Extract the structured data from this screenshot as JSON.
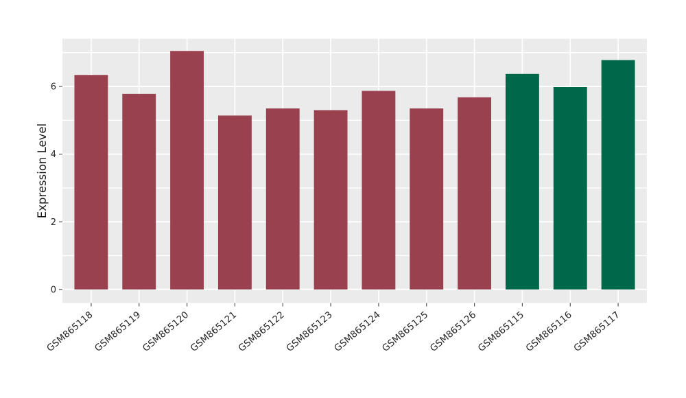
{
  "figure": {
    "background": "#ffffff",
    "panel_background": "#EBEBEB",
    "grid_color": "#ffffff",
    "tick_color": "#555555",
    "text_color": "#262626",
    "axis_title_color": "#1a1a1a"
  },
  "chart_data": {
    "type": "bar",
    "title": "",
    "xlabel": "",
    "ylabel": "Expression Level",
    "orientation": "vertical",
    "legend": "none",
    "grid": true,
    "categories": [
      "GSM865118",
      "GSM865119",
      "GSM865120",
      "GSM865121",
      "GSM865122",
      "GSM865123",
      "GSM865124",
      "GSM865125",
      "GSM865126",
      "GSM865115",
      "GSM865116",
      "GSM865117"
    ],
    "values": [
      6.34,
      5.78,
      7.05,
      5.14,
      5.35,
      5.3,
      5.87,
      5.35,
      5.68,
      6.37,
      5.98,
      6.78
    ],
    "bar_colors": [
      "#9A4150",
      "#9A4150",
      "#9A4150",
      "#9A4150",
      "#9A4150",
      "#9A4150",
      "#9A4150",
      "#9A4150",
      "#9A4150",
      "#00684A",
      "#00684A",
      "#00684A"
    ],
    "group_colors": {
      "maroon": "#9A4150",
      "green": "#00684A"
    },
    "y_ticks": [
      0,
      2,
      4,
      6
    ],
    "y_tick_labels": [
      "0",
      "2",
      "4",
      "6"
    ],
    "y_minor_ticks": [
      1,
      3,
      5,
      7
    ],
    "ylim": [
      -0.4,
      7.41
    ]
  }
}
